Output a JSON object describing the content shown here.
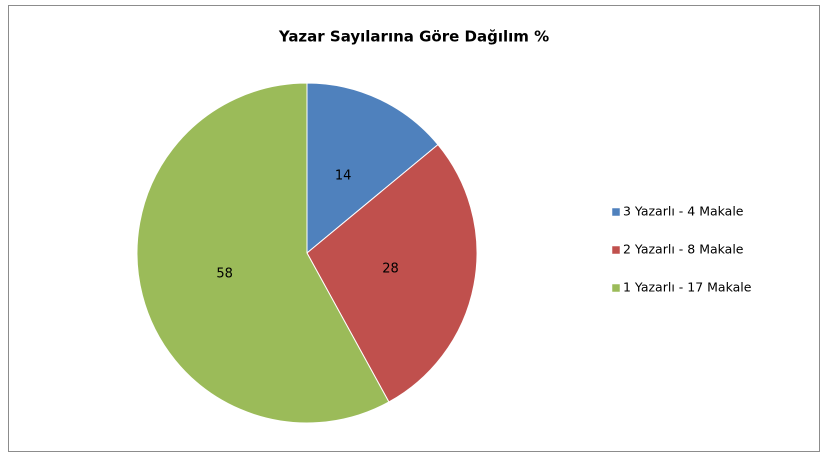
{
  "chart_data": {
    "type": "pie",
    "title": "Yazar Sayılarına Göre Dağılım %",
    "categories": [
      "3 Yazarlı - 4 Makale",
      "2 Yazarlı - 8 Makale",
      "1 Yazarlı - 17 Makale"
    ],
    "values": [
      14,
      28,
      58
    ],
    "colors": [
      "#4f81bd",
      "#c0504d",
      "#9bbb59"
    ],
    "legend": "right"
  }
}
